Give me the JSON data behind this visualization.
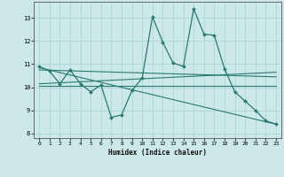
{
  "xlabel": "Humidex (Indice chaleur)",
  "bg_color": "#cce8e8",
  "grid_color": "#b0d8d8",
  "line_color": "#2a7a6e",
  "xlim": [
    -0.5,
    23.5
  ],
  "ylim": [
    7.8,
    13.7
  ],
  "yticks": [
    8,
    9,
    10,
    11,
    12,
    13
  ],
  "xticks": [
    0,
    1,
    2,
    3,
    4,
    5,
    6,
    7,
    8,
    9,
    10,
    11,
    12,
    13,
    14,
    15,
    16,
    17,
    18,
    19,
    20,
    21,
    22,
    23
  ],
  "line1_x": [
    0,
    1,
    2,
    3,
    4,
    5,
    6,
    7,
    8,
    9,
    10,
    11,
    12,
    13,
    14,
    15,
    16,
    17,
    18,
    19,
    20,
    21,
    22,
    23
  ],
  "line1_y": [
    10.9,
    10.7,
    10.15,
    10.75,
    10.15,
    9.8,
    10.1,
    8.7,
    8.8,
    9.85,
    10.4,
    13.05,
    11.95,
    11.05,
    10.9,
    13.4,
    12.3,
    12.25,
    10.8,
    9.8,
    9.4,
    9.0,
    8.55,
    8.4
  ],
  "line2_x": [
    0,
    23
  ],
  "line2_y": [
    10.75,
    10.45
  ],
  "line3_x": [
    0,
    23
  ],
  "line3_y": [
    10.85,
    8.4
  ],
  "line4_x": [
    0,
    23
  ],
  "line4_y": [
    10.15,
    10.65
  ],
  "line5_x": [
    0,
    23
  ],
  "line5_y": [
    10.05,
    10.05
  ]
}
